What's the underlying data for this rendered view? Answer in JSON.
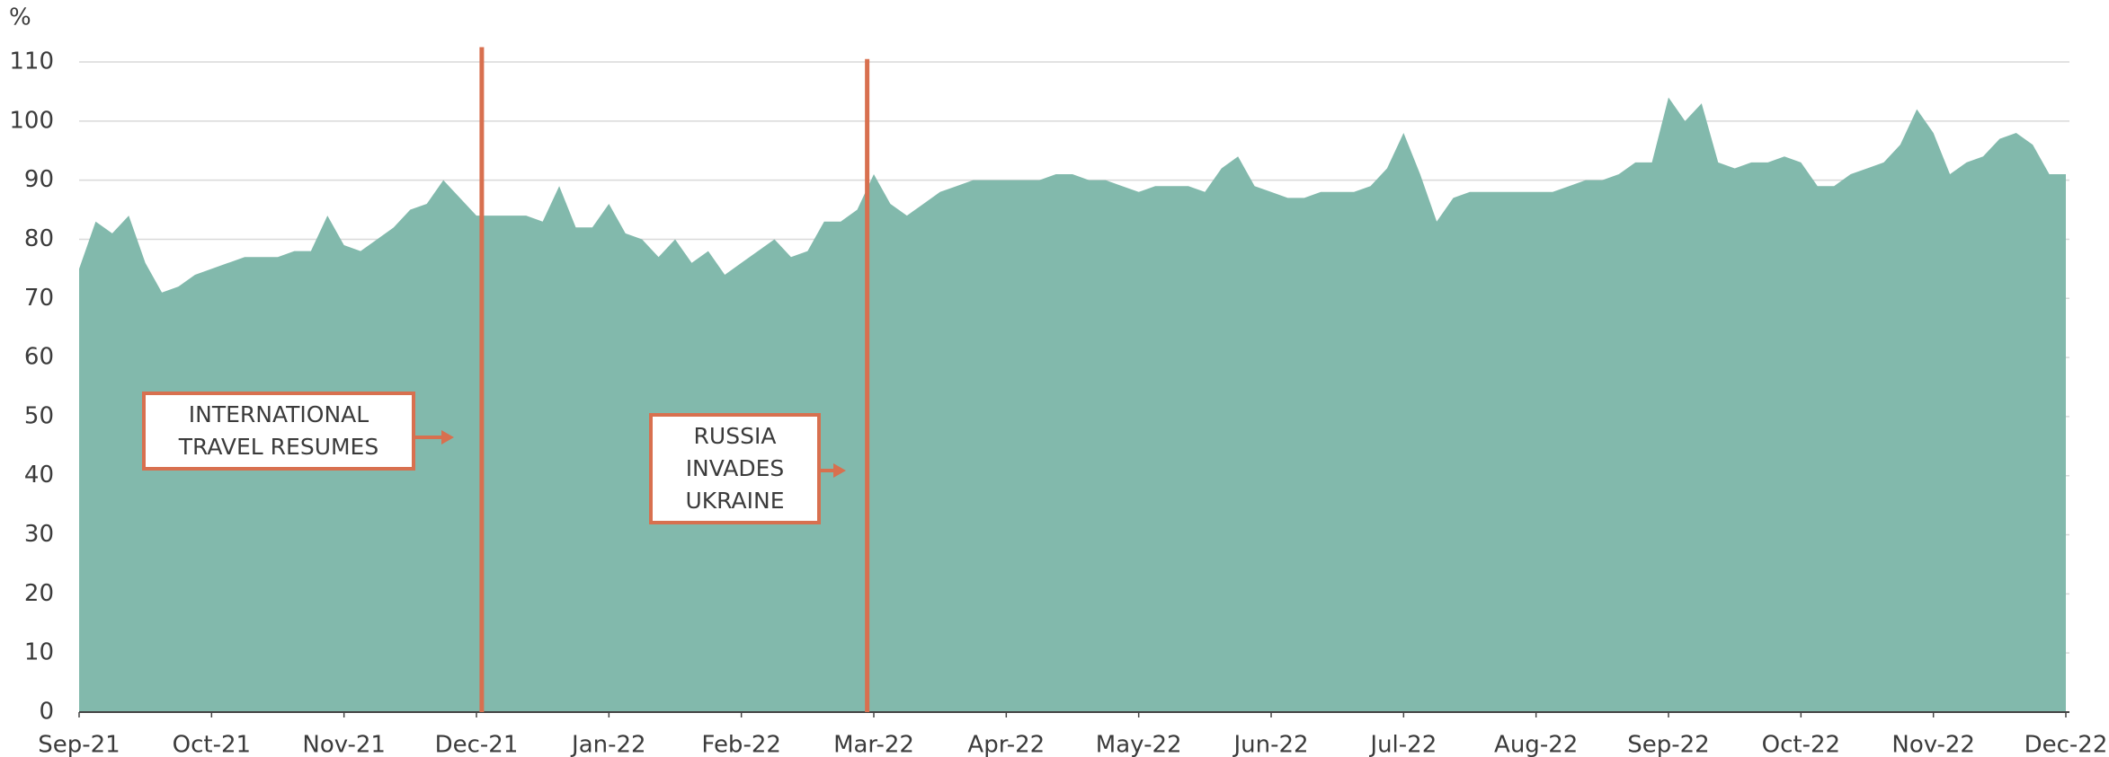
{
  "chart_data": {
    "type": "area",
    "y_label": "%",
    "color": "#82b9ac",
    "x": [
      0,
      0.125,
      0.25,
      0.375,
      0.5,
      0.625,
      0.75,
      0.875,
      1,
      1.125,
      1.25,
      1.375,
      1.5,
      1.625,
      1.75,
      1.875,
      2,
      2.125,
      2.25,
      2.375,
      2.5,
      2.625,
      2.75,
      2.875,
      3,
      3.125,
      3.25,
      3.375,
      3.5,
      3.625,
      3.75,
      3.875,
      4,
      4.125,
      4.25,
      4.375,
      4.5,
      4.625,
      4.75,
      4.875,
      5,
      5.125,
      5.25,
      5.375,
      5.5,
      5.625,
      5.75,
      5.875,
      6,
      6.125,
      6.25,
      6.375,
      6.5,
      6.625,
      6.75,
      6.875,
      7,
      7.125,
      7.25,
      7.375,
      7.5,
      7.625,
      7.75,
      7.875,
      8,
      8.125,
      8.25,
      8.375,
      8.5,
      8.625,
      8.75,
      8.875,
      9,
      9.125,
      9.25,
      9.375,
      9.5,
      9.625,
      9.75,
      9.875,
      10,
      10.125,
      10.25,
      10.375,
      10.5,
      10.625,
      10.75,
      10.875,
      11,
      11.125,
      11.25,
      11.375,
      11.5,
      11.625,
      11.75,
      11.875,
      12,
      12.125,
      12.25,
      12.375,
      12.5,
      12.625,
      12.75,
      12.875,
      13,
      13.125,
      13.25,
      13.375,
      13.5,
      13.625,
      13.75,
      13.875,
      14,
      14.125,
      14.25,
      14.375,
      14.5,
      14.625,
      14.75,
      14.875,
      15
    ],
    "values": [
      75,
      83,
      81,
      84,
      76,
      71,
      72,
      74,
      75,
      76,
      77,
      77,
      77,
      78,
      78,
      84,
      79,
      78,
      80,
      82,
      85,
      86,
      90,
      87,
      84,
      84,
      84,
      84,
      83,
      89,
      82,
      82,
      86,
      81,
      80,
      77,
      80,
      76,
      78,
      74,
      76,
      78,
      80,
      77,
      78,
      83,
      83,
      85,
      91,
      86,
      84,
      86,
      88,
      89,
      90,
      90,
      90,
      90,
      90,
      91,
      91,
      90,
      90,
      89,
      88,
      89,
      89,
      89,
      88,
      92,
      94,
      89,
      88,
      87,
      87,
      88,
      88,
      88,
      89,
      92,
      98,
      91,
      83,
      87,
      88,
      88,
      88,
      88,
      88,
      88,
      89,
      90,
      90,
      91,
      93,
      93,
      104,
      100,
      103,
      93,
      92,
      93,
      93,
      94,
      93,
      89,
      89,
      91,
      92,
      93,
      96,
      102,
      98,
      91,
      93,
      94,
      97,
      98,
      96,
      91,
      91
    ],
    "xlim": [
      0,
      15
    ],
    "xticks": [
      {
        "value": 0,
        "label": "Sep-21"
      },
      {
        "value": 1,
        "label": "Oct-21"
      },
      {
        "value": 2,
        "label": "Nov-21"
      },
      {
        "value": 3,
        "label": "Dec-21"
      },
      {
        "value": 4,
        "label": "Jan-22"
      },
      {
        "value": 5,
        "label": "Feb-22"
      },
      {
        "value": 6,
        "label": "Mar-22"
      },
      {
        "value": 7,
        "label": "Apr-22"
      },
      {
        "value": 8,
        "label": "May-22"
      },
      {
        "value": 9,
        "label": "Jun-22"
      },
      {
        "value": 10,
        "label": "Jul-22"
      },
      {
        "value": 11,
        "label": "Aug-22"
      },
      {
        "value": 12,
        "label": "Sep-22"
      },
      {
        "value": 13,
        "label": "Oct-22"
      },
      {
        "value": 14,
        "label": "Nov-22"
      },
      {
        "value": 15,
        "label": "Dec-22"
      }
    ],
    "ylim": [
      0,
      110
    ],
    "yticks": [
      0,
      10,
      20,
      30,
      40,
      50,
      60,
      70,
      80,
      90,
      100,
      110
    ],
    "grid": true,
    "annotations": [
      {
        "text": "INTERNATIONAL\nTRAVEL RESUMES",
        "x": 3.04,
        "y_top": 112.5,
        "color": "#d8704f"
      },
      {
        "text": "RUSSIA\nINVADES\nUKRAINE",
        "x": 5.95,
        "y_top": 110.5,
        "color": "#d8704f"
      }
    ]
  }
}
